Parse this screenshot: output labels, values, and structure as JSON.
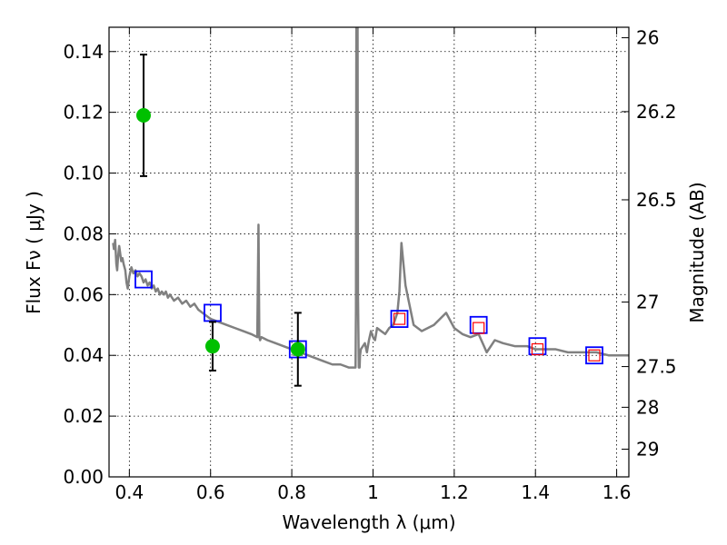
{
  "chart_data": {
    "type": "scatter",
    "xlabel": "Wavelength  λ (μm)",
    "ylabel": "Flux  Fν  ( μJy )",
    "y2label": "Magnitude (AB)",
    "xlim": [
      0.35,
      1.63
    ],
    "ylim": [
      0.0,
      0.148
    ],
    "grid": true,
    "xticks": [
      {
        "value": 0.4,
        "label": "0.4"
      },
      {
        "value": 0.6,
        "label": "0.6"
      },
      {
        "value": 0.8,
        "label": "0.8"
      },
      {
        "value": 1.0,
        "label": "1"
      },
      {
        "value": 1.2,
        "label": "1.2"
      },
      {
        "value": 1.4,
        "label": "1.4"
      },
      {
        "value": 1.6,
        "label": "1.6"
      }
    ],
    "yticks": [
      {
        "value": 0.0,
        "label": "0.00"
      },
      {
        "value": 0.02,
        "label": "0.02"
      },
      {
        "value": 0.04,
        "label": "0.04"
      },
      {
        "value": 0.06,
        "label": "0.06"
      },
      {
        "value": 0.08,
        "label": "0.08"
      },
      {
        "value": 0.1,
        "label": "0.10"
      },
      {
        "value": 0.12,
        "label": "0.12"
      },
      {
        "value": 0.14,
        "label": "0.14"
      }
    ],
    "y2ticks": [
      {
        "magnitude": 26,
        "label": "26"
      },
      {
        "magnitude": 26.2,
        "label": "26.2"
      },
      {
        "magnitude": 26.5,
        "label": "26.5"
      },
      {
        "magnitude": 27,
        "label": "27"
      },
      {
        "magnitude": 27.5,
        "label": "27.5"
      },
      {
        "magnitude": 28,
        "label": "28"
      },
      {
        "magnitude": 29,
        "label": "29"
      }
    ],
    "series": [
      {
        "kind": "model-spectrum",
        "color": "#808080",
        "x": [
          0.36,
          0.362,
          0.365,
          0.368,
          0.37,
          0.372,
          0.375,
          0.378,
          0.38,
          0.383,
          0.386,
          0.39,
          0.393,
          0.396,
          0.4,
          0.405,
          0.41,
          0.415,
          0.42,
          0.425,
          0.43,
          0.435,
          0.44,
          0.445,
          0.45,
          0.455,
          0.46,
          0.465,
          0.47,
          0.475,
          0.48,
          0.485,
          0.49,
          0.495,
          0.5,
          0.51,
          0.52,
          0.53,
          0.54,
          0.55,
          0.56,
          0.57,
          0.58,
          0.59,
          0.6,
          0.62,
          0.64,
          0.66,
          0.68,
          0.7,
          0.715,
          0.718,
          0.72,
          0.722,
          0.725,
          0.74,
          0.76,
          0.78,
          0.8,
          0.82,
          0.84,
          0.86,
          0.88,
          0.9,
          0.92,
          0.94,
          0.955,
          0.957,
          0.958,
          0.959,
          0.962,
          0.963,
          0.965,
          0.967,
          0.968,
          0.97,
          0.98,
          0.985,
          0.99,
          0.995,
          1.0,
          1.005,
          1.01,
          1.02,
          1.03,
          1.04,
          1.05,
          1.06,
          1.065,
          1.07,
          1.08,
          1.1,
          1.12,
          1.15,
          1.18,
          1.2,
          1.22,
          1.24,
          1.26,
          1.28,
          1.3,
          1.32,
          1.35,
          1.38,
          1.4,
          1.42,
          1.45,
          1.48,
          1.5,
          1.55,
          1.58,
          1.6,
          1.63
        ],
        "y": [
          0.077,
          0.075,
          0.078,
          0.07,
          0.068,
          0.072,
          0.076,
          0.073,
          0.071,
          0.072,
          0.07,
          0.068,
          0.064,
          0.062,
          0.066,
          0.069,
          0.067,
          0.068,
          0.066,
          0.067,
          0.066,
          0.064,
          0.065,
          0.063,
          0.064,
          0.062,
          0.063,
          0.061,
          0.062,
          0.06,
          0.061,
          0.06,
          0.061,
          0.059,
          0.06,
          0.058,
          0.059,
          0.057,
          0.058,
          0.056,
          0.057,
          0.055,
          0.054,
          0.053,
          0.052,
          0.051,
          0.05,
          0.049,
          0.048,
          0.047,
          0.046,
          0.083,
          0.046,
          0.045,
          0.046,
          0.045,
          0.044,
          0.043,
          0.042,
          0.041,
          0.04,
          0.039,
          0.038,
          0.037,
          0.037,
          0.036,
          0.036,
          0.036,
          0.055,
          0.148,
          0.148,
          0.06,
          0.036,
          0.036,
          0.04,
          0.042,
          0.044,
          0.041,
          0.045,
          0.048,
          0.046,
          0.045,
          0.049,
          0.048,
          0.047,
          0.049,
          0.05,
          0.054,
          0.061,
          0.077,
          0.063,
          0.05,
          0.048,
          0.05,
          0.054,
          0.049,
          0.047,
          0.046,
          0.047,
          0.041,
          0.045,
          0.044,
          0.043,
          0.043,
          0.042,
          0.042,
          0.042,
          0.041,
          0.041,
          0.041,
          0.04,
          0.04,
          0.04
        ]
      },
      {
        "kind": "model-bandpass-flux",
        "marker": "open-square",
        "color": "#0000ff",
        "x": [
          0.435,
          0.605,
          0.815,
          1.065,
          1.26,
          1.405,
          1.545
        ],
        "y": [
          0.065,
          0.054,
          0.042,
          0.052,
          0.05,
          0.043,
          0.04
        ]
      },
      {
        "kind": "observed-hst-nir",
        "marker": "open-square-small",
        "color": "#ff0000",
        "x": [
          1.065,
          1.26,
          1.405,
          1.545
        ],
        "y": [
          0.052,
          0.049,
          0.042,
          0.04
        ]
      },
      {
        "kind": "observed-optical",
        "marker": "filled-circle",
        "color": "#00c000",
        "x": [
          0.435,
          0.605,
          0.815
        ],
        "y": [
          0.119,
          0.043,
          0.042
        ],
        "yerr": [
          0.02,
          0.008,
          0.012
        ]
      }
    ]
  }
}
